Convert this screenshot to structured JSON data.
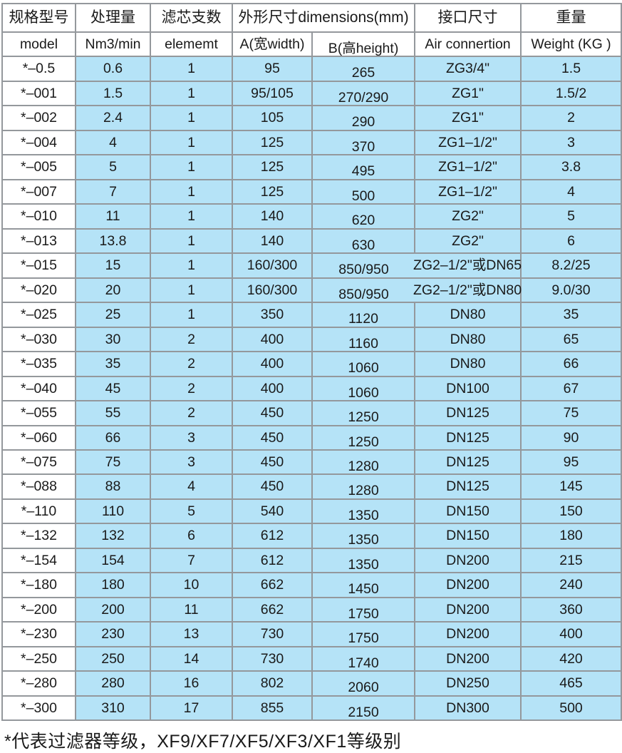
{
  "table": {
    "header_row1": [
      "规格型号",
      "处理量",
      "滤芯支数",
      "外形尺寸dimensions(mm)",
      "接口尺寸",
      "重量"
    ],
    "header_row2": [
      "model",
      "Nm3/min",
      "elememt",
      "A(宽width)",
      "B(高height)",
      "Air connertion",
      "Weight (KG )"
    ],
    "field_names": [
      "model",
      "capacity",
      "elements",
      "width-a",
      "height-b",
      "connection",
      "weight"
    ],
    "rows": [
      [
        "*–0.5",
        "0.6",
        "1",
        "95",
        "265",
        "ZG3/4\"",
        "1.5"
      ],
      [
        "*–001",
        "1.5",
        "1",
        "95/105",
        "270/290",
        "ZG1\"",
        "1.5/2"
      ],
      [
        "*–002",
        "2.4",
        "1",
        "105",
        "290",
        "ZG1\"",
        "2"
      ],
      [
        "*–004",
        "4",
        "1",
        "125",
        "370",
        "ZG1–1/2\"",
        "3"
      ],
      [
        "*–005",
        "5",
        "1",
        "125",
        "495",
        "ZG1–1/2\"",
        "3.8"
      ],
      [
        "*–007",
        "7",
        "1",
        "125",
        "500",
        "ZG1–1/2\"",
        "4"
      ],
      [
        "*–010",
        "11",
        "1",
        "140",
        "620",
        "ZG2\"",
        "5"
      ],
      [
        "*–013",
        "13.8",
        "1",
        "140",
        "630",
        "ZG2\"",
        "6"
      ],
      [
        "*–015",
        "15",
        "1",
        "160/300",
        "850/950",
        "ZG2–1/2\"或DN65",
        "8.2/25"
      ],
      [
        "*–020",
        "20",
        "1",
        "160/300",
        "850/950",
        "ZG2–1/2\"或DN80",
        "9.0/30"
      ],
      [
        "*–025",
        "25",
        "1",
        "350",
        "1120",
        "DN80",
        "35"
      ],
      [
        "*–030",
        "30",
        "2",
        "400",
        "1160",
        "DN80",
        "65"
      ],
      [
        "*–035",
        "35",
        "2",
        "400",
        "1060",
        "DN80",
        "66"
      ],
      [
        "*–040",
        "45",
        "2",
        "400",
        "1060",
        "DN100",
        "67"
      ],
      [
        "*–055",
        "55",
        "2",
        "450",
        "1250",
        "DN125",
        "75"
      ],
      [
        "*–060",
        "66",
        "3",
        "450",
        "1250",
        "DN125",
        "90"
      ],
      [
        "*–075",
        "75",
        "3",
        "450",
        "1280",
        "DN125",
        "95"
      ],
      [
        "*–088",
        "88",
        "4",
        "450",
        "1280",
        "DN125",
        "145"
      ],
      [
        "*–110",
        "110",
        "5",
        "540",
        "1350",
        "DN150",
        "150"
      ],
      [
        "*–132",
        "132",
        "6",
        "612",
        "1350",
        "DN150",
        "180"
      ],
      [
        "*–154",
        "154",
        "7",
        "612",
        "1350",
        "DN200",
        "215"
      ],
      [
        "*–180",
        "180",
        "10",
        "662",
        "1450",
        "DN200",
        "240"
      ],
      [
        "*–200",
        "200",
        "11",
        "662",
        "1750",
        "DN200",
        "360"
      ],
      [
        "*–230",
        "230",
        "13",
        "730",
        "1750",
        "DN200",
        "400"
      ],
      [
        "*–250",
        "250",
        "14",
        "730",
        "1740",
        "DN200",
        "420"
      ],
      [
        "*–280",
        "280",
        "16",
        "802",
        "2060",
        "DN250",
        "465"
      ],
      [
        "*–300",
        "310",
        "17",
        "855",
        "2150",
        "DN300",
        "500"
      ]
    ],
    "overflow_connection_rows": [
      8,
      9
    ]
  },
  "footnote": "*代表过滤器等级，XF9/XF7/XF5/XF3/XF1等级别",
  "colors": {
    "cell_blue": "#b5e3f7",
    "border_gray": "#94989c",
    "text": "#1a1a1a",
    "background": "#ffffff"
  }
}
